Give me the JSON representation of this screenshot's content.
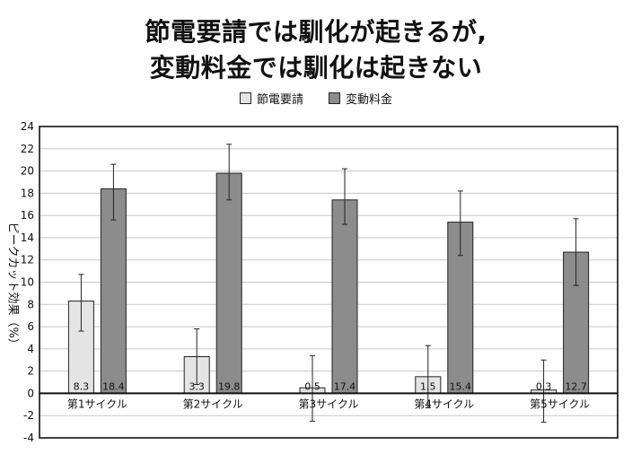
{
  "title_line1": "節電要請では馴化が起きるが,",
  "title_line2": "変動料金では馴化は起きない",
  "chart_data": {
    "type": "bar",
    "categories": [
      "第1サイクル",
      "第2サイクル",
      "第3サイクル",
      "第4サイクル",
      "第5サイクル"
    ],
    "series": [
      {
        "name": "節電要請",
        "color": "#e4e4e4",
        "values": [
          8.3,
          3.3,
          0.5,
          1.5,
          0.3
        ],
        "labels": [
          "8.3",
          "3.3",
          "0.5",
          "1.5",
          "0.3"
        ],
        "error_low": [
          5.6,
          0.8,
          -2.5,
          -1.3,
          -2.6
        ],
        "error_high": [
          10.7,
          5.8,
          3.4,
          4.3,
          3.0
        ]
      },
      {
        "name": "変動料金",
        "color": "#8c8c8c",
        "values": [
          18.4,
          19.8,
          17.4,
          15.4,
          12.7
        ],
        "labels": [
          "18.4",
          "19.8",
          "17.4",
          "15.4",
          "12.7"
        ],
        "error_low": [
          15.6,
          17.4,
          15.2,
          12.4,
          9.7
        ],
        "error_high": [
          20.6,
          22.4,
          20.2,
          18.2,
          15.7
        ]
      }
    ],
    "ylabel": "ピークカット効果（%）",
    "ylim": [
      -4,
      24
    ],
    "yticks": [
      -4,
      -2,
      0,
      2,
      4,
      6,
      8,
      10,
      12,
      14,
      16,
      18,
      20,
      22,
      24
    ],
    "grid": true,
    "legend_position": "top-center"
  }
}
